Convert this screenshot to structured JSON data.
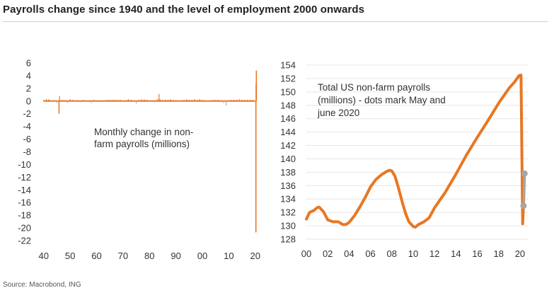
{
  "page": {
    "title": "Payrolls change since 1940 and the level of employment 2000 onwards",
    "source": "Source: Macrobond, ING"
  },
  "colors": {
    "series": "#e87722",
    "dots": "#a6a6a6",
    "grid": "#e6e6e6"
  },
  "chart_data": [
    {
      "type": "bar",
      "title": "",
      "annotation": [
        "Monthly change in non-",
        "farm payrolls (millions)"
      ],
      "xlabel": "",
      "ylabel": "",
      "x_ticks": [
        "40",
        "50",
        "60",
        "70",
        "80",
        "90",
        "00",
        "10",
        "20"
      ],
      "x_tick_values": [
        1940,
        1950,
        1960,
        1970,
        1980,
        1990,
        2000,
        2010,
        2020
      ],
      "xlim": [
        1939,
        2020.6
      ],
      "y_ticks": [
        "6",
        "4",
        "2",
        "0",
        "-2",
        "-4",
        "-6",
        "-8",
        "-10",
        "-12",
        "-14",
        "-16",
        "-18",
        "-20",
        "-22"
      ],
      "y_tick_values": [
        6,
        4,
        2,
        0,
        -2,
        -4,
        -6,
        -8,
        -10,
        -12,
        -14,
        -16,
        -18,
        -20,
        -22
      ],
      "ylim": [
        -22,
        6
      ],
      "grid": false,
      "series": [
        {
          "x": [
            1940,
            1941,
            1942,
            1943,
            1944,
            1945,
            1945.8,
            1946,
            1947,
            1948,
            1949,
            1950,
            1951,
            1952,
            1953,
            1954,
            1955,
            1956,
            1957,
            1958,
            1959,
            1960,
            1961,
            1962,
            1963,
            1964,
            1965,
            1966,
            1967,
            1968,
            1969,
            1970,
            1971,
            1972,
            1973,
            1974,
            1975,
            1976,
            1977,
            1978,
            1979,
            1980,
            1981,
            1982,
            1983,
            1983.6,
            1984,
            1985,
            1986,
            1987,
            1988,
            1989,
            1990,
            1991,
            1992,
            1993,
            1994,
            1995,
            1996,
            1997,
            1998,
            1999,
            2000,
            2001,
            2002,
            2003,
            2004,
            2005,
            2006,
            2007,
            2008,
            2009,
            2010,
            2011,
            2012,
            2013,
            2014,
            2015,
            2016,
            2017,
            2018,
            2019,
            2020.25,
            2020.33,
            2020.42
          ],
          "values": [
            0.2,
            0.3,
            0.3,
            0.1,
            -0.1,
            -0.3,
            -2.0,
            0.8,
            0.2,
            0.1,
            -0.3,
            0.3,
            0.2,
            0.1,
            0.1,
            -0.2,
            0.2,
            0.1,
            0.0,
            -0.3,
            0.2,
            0.0,
            0.1,
            0.1,
            0.1,
            0.2,
            0.2,
            0.2,
            0.2,
            0.2,
            0.2,
            -0.1,
            0.1,
            0.3,
            0.2,
            0.0,
            -0.4,
            0.2,
            0.3,
            0.3,
            0.2,
            -0.1,
            0.1,
            -0.2,
            0.3,
            1.1,
            0.3,
            0.2,
            0.2,
            0.2,
            0.3,
            0.2,
            0.1,
            -0.1,
            0.1,
            0.2,
            0.3,
            0.2,
            0.2,
            0.3,
            0.2,
            0.3,
            0.2,
            -0.2,
            -0.1,
            0.0,
            0.2,
            0.2,
            0.2,
            0.1,
            -0.3,
            -0.7,
            0.1,
            0.2,
            0.2,
            0.2,
            0.3,
            0.2,
            0.2,
            0.2,
            0.2,
            0.2,
            -20.7,
            2.7,
            4.8
          ]
        }
      ]
    },
    {
      "type": "line",
      "title": "",
      "annotation": [
        "Total US non-farm payrolls",
        "(millions) - dots mark May and",
        "june 2020"
      ],
      "xlabel": "",
      "ylabel": "",
      "x_ticks": [
        "00",
        "02",
        "04",
        "06",
        "08",
        "10",
        "12",
        "14",
        "16",
        "18",
        "20"
      ],
      "x_tick_values": [
        2000,
        2002,
        2004,
        2006,
        2008,
        2010,
        2012,
        2014,
        2016,
        2018,
        2020
      ],
      "xlim": [
        2000,
        2020.8
      ],
      "y_ticks": [
        "154",
        "152",
        "150",
        "148",
        "146",
        "144",
        "142",
        "140",
        "138",
        "136",
        "134",
        "132",
        "130",
        "128"
      ],
      "y_tick_values": [
        154,
        152,
        150,
        148,
        146,
        144,
        142,
        140,
        138,
        136,
        134,
        132,
        130,
        128
      ],
      "ylim": [
        128,
        154
      ],
      "grid": true,
      "series": [
        {
          "x": [
            2000.0,
            2000.3,
            2000.7,
            2001.0,
            2001.2,
            2001.6,
            2002.0,
            2002.5,
            2003.0,
            2003.4,
            2003.7,
            2004.0,
            2004.5,
            2005.0,
            2005.5,
            2006.0,
            2006.5,
            2007.0,
            2007.5,
            2007.8,
            2008.0,
            2008.3,
            2008.6,
            2009.0,
            2009.3,
            2009.6,
            2010.0,
            2010.2,
            2010.5,
            2011.0,
            2011.5,
            2012.0,
            2013.0,
            2014.0,
            2015.0,
            2016.0,
            2017.0,
            2018.0,
            2019.0,
            2019.5,
            2019.9,
            2020.1,
            2020.25,
            2020.33,
            2020.42
          ],
          "values": [
            131.0,
            132.0,
            132.3,
            132.7,
            132.8,
            132.1,
            130.9,
            130.6,
            130.6,
            130.2,
            130.2,
            130.5,
            131.5,
            132.8,
            134.2,
            135.8,
            136.9,
            137.6,
            138.1,
            138.3,
            138.2,
            137.4,
            135.8,
            133.4,
            131.8,
            130.6,
            129.9,
            129.8,
            130.2,
            130.6,
            131.2,
            132.7,
            135.0,
            137.7,
            140.6,
            143.2,
            145.7,
            148.3,
            150.6,
            151.5,
            152.4,
            152.5,
            130.3,
            133.0,
            137.8
          ]
        }
      ],
      "markers": {
        "x": [
          2020.33,
          2020.42
        ],
        "values": [
          133.0,
          137.8
        ]
      }
    }
  ]
}
